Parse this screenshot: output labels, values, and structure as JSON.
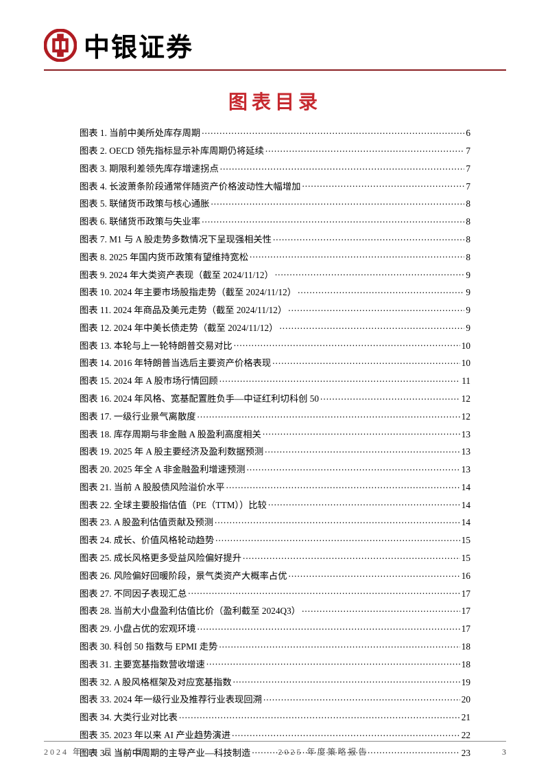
{
  "header": {
    "brand": "中银证券",
    "logo_color": "#b01c22",
    "rule_color": "#8a1e22"
  },
  "title": {
    "text": "图表目录",
    "color": "#c6292f",
    "fontsize": 28
  },
  "toc_prefix": "图表 ",
  "toc": [
    {
      "n": "1",
      "label": "当前中美所处库存周期",
      "page": "6"
    },
    {
      "n": "2",
      "label": "OECD 领先指标显示补库周期仍将延续",
      "page": "7"
    },
    {
      "n": "3",
      "label": "期限利差领先库存增速拐点",
      "page": "7"
    },
    {
      "n": "4",
      "label": "长波萧条阶段通常伴随资产价格波动性大幅增加",
      "page": "7"
    },
    {
      "n": "5",
      "label": "联储货币政策与核心通胀",
      "page": "8"
    },
    {
      "n": "6",
      "label": "联储货币政策与失业率",
      "page": "8"
    },
    {
      "n": "7",
      "label": "M1 与 A 股走势多数情况下呈现强相关性",
      "page": "8"
    },
    {
      "n": "8",
      "label": "2025 年国内货币政策有望维持宽松",
      "page": "8"
    },
    {
      "n": "9",
      "label": "2024 年大类资产表现（截至 2024/11/12）",
      "page": "9"
    },
    {
      "n": "10",
      "label": "2024 年主要市场股指走势（截至 2024/11/12）",
      "page": "9"
    },
    {
      "n": "11",
      "label": "2024 年商品及美元走势（截至 2024/11/12）",
      "page": "9"
    },
    {
      "n": "12",
      "label": "2024 年中美长债走势（截至 2024/11/12）",
      "page": "9"
    },
    {
      "n": "13",
      "label": "本轮与上一轮特朗普交易对比",
      "page": "10"
    },
    {
      "n": "14",
      "label": "2016 年特朗普当选后主要资产价格表现",
      "page": "10"
    },
    {
      "n": "15",
      "label": "2024 年 A 股市场行情回顾",
      "page": "11"
    },
    {
      "n": "16",
      "label": "2024 年风格、宽基配置胜负手—中证红利切科创 50",
      "page": "12"
    },
    {
      "n": "17",
      "label": "一级行业景气离散度",
      "page": "12"
    },
    {
      "n": "18",
      "label": "库存周期与非金融 A 股盈利高度相关",
      "page": "13"
    },
    {
      "n": "19",
      "label": "2025 年 A 股主要经济及盈利数据预测",
      "page": "13"
    },
    {
      "n": "20",
      "label": "2025 年全 A 非金融盈利增速预测",
      "page": "13"
    },
    {
      "n": "21",
      "label": "当前 A 股股债风险溢价水平",
      "page": "14"
    },
    {
      "n": "22",
      "label": "全球主要股指估值（PE（TTM））比较",
      "page": "14"
    },
    {
      "n": "23",
      "label": "A 股盈利估值贡献及预测",
      "page": "14"
    },
    {
      "n": "24",
      "label": "成长、价值风格轮动趋势",
      "page": "15"
    },
    {
      "n": "25",
      "label": "成长风格更多受益风险偏好提升",
      "page": "15"
    },
    {
      "n": "26",
      "label": "风险偏好回暖阶段，景气类资产大概率占优",
      "page": "16"
    },
    {
      "n": "27",
      "label": "不同因子表现汇总",
      "page": "17"
    },
    {
      "n": "28",
      "label": "当前大小盘盈利估值比价（盈利截至 2024Q3）",
      "page": "17"
    },
    {
      "n": "29",
      "label": "小盘占优的宏观环境",
      "page": "17"
    },
    {
      "n": "30",
      "label": "科创 50 指数与 EPMI 走势",
      "page": "18"
    },
    {
      "n": "31",
      "label": "主要宽基指数营收增速",
      "page": "18"
    },
    {
      "n": "32",
      "label": "A 股风格框架及对应宽基指数",
      "page": "19"
    },
    {
      "n": "33",
      "label": "2024 年一级行业及推荐行业表现回溯",
      "page": "20"
    },
    {
      "n": "34",
      "label": "大类行业对比表",
      "page": "21"
    },
    {
      "n": "35",
      "label": "2023 年以来 AI 产业趋势演进",
      "page": "22"
    },
    {
      "n": "36",
      "label": "当前中周期的主导产业—科技制造",
      "page": "23"
    }
  ],
  "footer": {
    "date": "2024 年 12 月 16 日",
    "report": "2025 年度策略报告",
    "page_number": "3",
    "rule_color": "#888888",
    "text_color": "#555555"
  }
}
